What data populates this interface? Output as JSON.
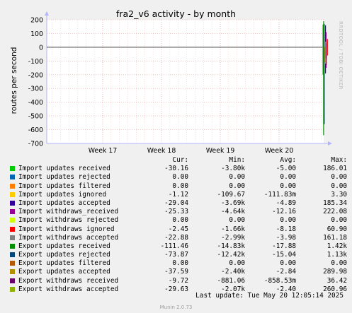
{
  "chart_data": {
    "type": "line",
    "title": "fra2_v6 activity - by month",
    "ylabel": "routes per second",
    "xlabel": "",
    "ylim": [
      -700,
      200
    ],
    "yticks": [
      200,
      100,
      0,
      -100,
      -200,
      -300,
      -400,
      -500,
      -600,
      -700
    ],
    "x_ticks": [
      "Week 17",
      "Week 18",
      "Week 19",
      "Week 20"
    ],
    "grid": true,
    "watermark": "RRDTOOL / TOBI OETIKER",
    "columns": [
      "Cur:",
      "Min:",
      "Avg:",
      "Max:"
    ],
    "series": [
      {
        "name": "Import updates received",
        "color": "#00cc00",
        "cur": "-30.16",
        "min": "-3.80k",
        "avg": "-5.00",
        "max": "186.01",
        "top": 165,
        "bottom": -200
      },
      {
        "name": "Import updates rejected",
        "color": "#0066b3",
        "cur": "0.00",
        "min": "0.00",
        "avg": "0.00",
        "max": "0.00",
        "top": 0,
        "bottom": 0
      },
      {
        "name": "Import updates filtered",
        "color": "#ff8000",
        "cur": "0.00",
        "min": "0.00",
        "avg": "0.00",
        "max": "0.00",
        "top": 0,
        "bottom": 0
      },
      {
        "name": "Import updates ignored",
        "color": "#ffcc00",
        "cur": "-1.12",
        "min": "-109.67",
        "avg": "-111.83m",
        "max": "3.30",
        "top": 3,
        "bottom": -110
      },
      {
        "name": "Import updates accepted",
        "color": "#330099",
        "cur": "-29.04",
        "min": "-3.69k",
        "avg": "-4.89",
        "max": "185.34",
        "top": 160,
        "bottom": -190
      },
      {
        "name": "Import withdraws_received",
        "color": "#990099",
        "cur": "-25.33",
        "min": "-4.64k",
        "avg": "-12.16",
        "max": "222.08",
        "top": 110,
        "bottom": -150
      },
      {
        "name": "Import withdraws rejected",
        "color": "#ccff00",
        "cur": "0.00",
        "min": "0.00",
        "avg": "0.00",
        "max": "0.00",
        "top": 0,
        "bottom": 0
      },
      {
        "name": "Import withdraws ignored",
        "color": "#ff0000",
        "cur": "-2.45",
        "min": "-1.66k",
        "avg": "-8.18",
        "max": "60.90",
        "top": 60,
        "bottom": -60
      },
      {
        "name": "Import withdraws accepted",
        "color": "#808080",
        "cur": "-22.88",
        "min": "-2.99k",
        "avg": "-3.98",
        "max": "161.18",
        "top": 100,
        "bottom": -140
      },
      {
        "name": "Export updates received",
        "color": "#008f00",
        "cur": "-111.46",
        "min": "-14.83k",
        "avg": "-17.88",
        "max": "1.42k",
        "top": 190,
        "bottom": -640
      },
      {
        "name": "Export updates rejected",
        "color": "#00487d",
        "cur": "-73.87",
        "min": "-12.42k",
        "avg": "-15.04",
        "max": "1.13k",
        "top": 170,
        "bottom": -560
      },
      {
        "name": "Export updates filtered",
        "color": "#b35a00",
        "cur": "0.00",
        "min": "0.00",
        "avg": "0.00",
        "max": "0.00",
        "top": 0,
        "bottom": 0
      },
      {
        "name": "Export updates accepted",
        "color": "#b38f00",
        "cur": "-37.59",
        "min": "-2.40k",
        "avg": "-2.84",
        "max": "289.98",
        "top": 40,
        "bottom": -120
      },
      {
        "name": "Export withdraws received",
        "color": "#6b006b",
        "cur": "-9.72",
        "min": "-881.06",
        "avg": "-858.53m",
        "max": "36.42",
        "top": 30,
        "bottom": -80
      },
      {
        "name": "Export withdraws accepted",
        "color": "#8fb300",
        "cur": "-29.63",
        "min": "-2.07k",
        "avg": "-2.40",
        "max": "260.96",
        "top": 50,
        "bottom": -130
      }
    ]
  },
  "footer": {
    "last_update": "Last update: Tue May 20 12:05:14 2025",
    "generator": "Munin 2.0.73"
  }
}
